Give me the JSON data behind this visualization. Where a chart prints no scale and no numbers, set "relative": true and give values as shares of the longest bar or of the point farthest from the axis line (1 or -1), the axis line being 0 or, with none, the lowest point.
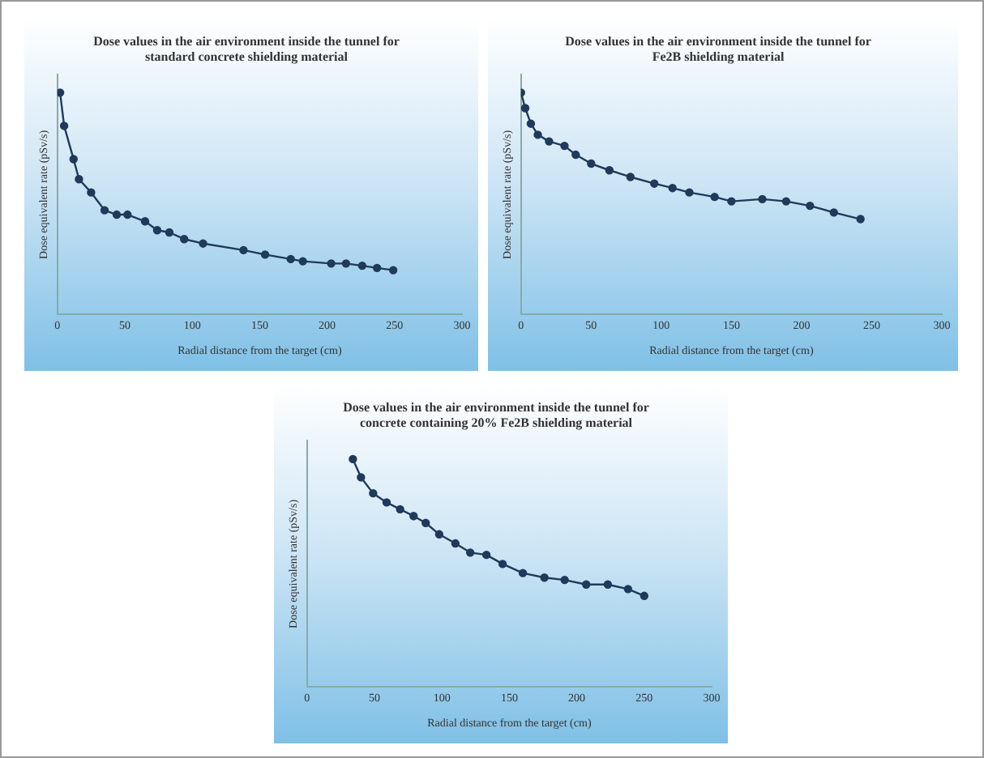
{
  "chart_data": [
    {
      "type": "line",
      "title": "Dose values in the air environment inside the tunnel for standard concrete shielding material",
      "xlabel": "Radial distance from the target (cm)",
      "ylabel": "Dose equivalent rate (pSv/s)",
      "relative": true,
      "marker": "circle",
      "xlim": [
        0,
        300
      ],
      "xticks": [
        0,
        50,
        100,
        150,
        200,
        250,
        300
      ],
      "series": [
        {
          "color": "#1f3a5a",
          "x": [
            2,
            5,
            12,
            16,
            25,
            35,
            44,
            52,
            65,
            74,
            83,
            94,
            108,
            138,
            154,
            173,
            182,
            203,
            214,
            226,
            237,
            249
          ],
          "values": [
            1,
            0.85,
            0.7,
            0.61,
            0.55,
            0.47,
            0.45,
            0.45,
            0.42,
            0.38,
            0.37,
            0.34,
            0.32,
            0.29,
            0.27,
            0.25,
            0.24,
            0.23,
            0.23,
            0.22,
            0.21,
            0.2
          ]
        }
      ]
    },
    {
      "type": "line",
      "title": "Dose values in the air environment inside the tunnel for Fe2B shielding material",
      "xlabel": "Radial distance from the target (cm)",
      "ylabel": "Dose equivalent rate (pSv/s)",
      "relative": true,
      "marker": "circle",
      "xlim": [
        0,
        300
      ],
      "xticks": [
        0,
        50,
        100,
        150,
        200,
        250,
        300
      ],
      "series": [
        {
          "color": "#1f3a5a",
          "x": [
            0,
            3,
            7,
            12,
            20,
            31,
            39,
            50,
            63,
            78,
            95,
            108,
            120,
            138,
            150,
            172,
            189,
            206,
            223,
            242
          ],
          "values": [
            1,
            0.93,
            0.86,
            0.81,
            0.78,
            0.76,
            0.72,
            0.68,
            0.65,
            0.62,
            0.59,
            0.57,
            0.55,
            0.53,
            0.51,
            0.52,
            0.51,
            0.49,
            0.46,
            0.43
          ]
        }
      ]
    },
    {
      "type": "line",
      "title": "Dose values in the air environment inside the tunnel for concrete containing 20% Fe2B shielding material",
      "xlabel": "Radial distance from the target (cm)",
      "ylabel": "Dose equivalent rate (pSv/s)",
      "relative": true,
      "marker": "circle",
      "xlim": [
        0,
        300
      ],
      "xticks": [
        0,
        50,
        100,
        150,
        200,
        250,
        300
      ],
      "series": [
        {
          "color": "#1f3a5a",
          "x": [
            34,
            40,
            49,
            59,
            69,
            79,
            88,
            98,
            110,
            121,
            133,
            145,
            160,
            176,
            191,
            207,
            223,
            238,
            250
          ],
          "values": [
            1,
            0.92,
            0.85,
            0.81,
            0.78,
            0.75,
            0.72,
            0.67,
            0.63,
            0.59,
            0.58,
            0.54,
            0.5,
            0.48,
            0.47,
            0.45,
            0.45,
            0.43,
            0.4
          ]
        }
      ]
    }
  ]
}
